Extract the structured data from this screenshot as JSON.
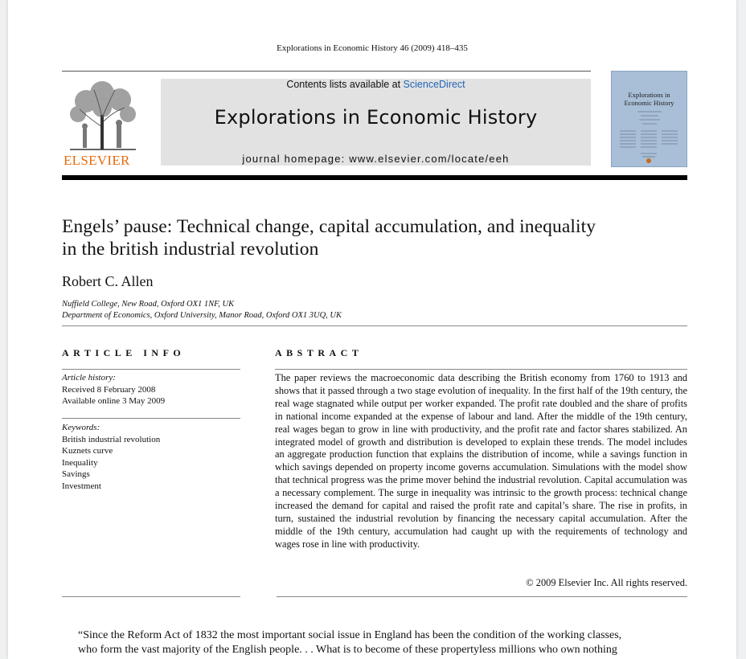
{
  "citation": "Explorations in Economic History 46 (2009) 418–435",
  "publisher": {
    "name": "ELSEVIER",
    "color": "#e66b0d"
  },
  "banner": {
    "contents_prefix": "Contents lists available at ",
    "contents_link": "ScienceDirect",
    "journal_title": "Explorations in Economic History",
    "homepage": "journal homepage: www.elsevier.com/locate/eeh"
  },
  "cover": {
    "title_line1": "Explorations in",
    "title_line2": "Economic History",
    "color": "#a9bfd8"
  },
  "article": {
    "title_line1": "Engels’ pause: Technical change, capital accumulation, and inequality",
    "title_line2": "in the british industrial revolution",
    "author": "Robert C. Allen",
    "affiliations": [
      "Nuffield College, New Road, Oxford OX1 1NF, UK",
      "Department of Economics, Oxford University, Manor Road, Oxford OX1 3UQ, UK"
    ]
  },
  "article_info": {
    "heading": "ARTICLE INFO",
    "history_label": "Article history:",
    "received": "Received 8 February 2008",
    "available": "Available online 3 May 2009",
    "keywords_label": "Keywords:",
    "keywords": [
      "British industrial revolution",
      "Kuznets curve",
      "Inequality",
      "Savings",
      "Investment"
    ]
  },
  "abstract": {
    "heading": "ABSTRACT",
    "text": "The paper reviews the macroeconomic data describing the British economy from 1760 to 1913 and shows that it passed through a two stage evolution of inequality. In the first half of the 19th century, the real wage stagnated while output per worker expanded. The profit rate doubled and the share of profits in national income expanded at the expense of labour and land. After the middle of the 19th century, real wages began to grow in line with productivity, and the profit rate and factor shares stabilized. An integrated model of growth and distribution is developed to explain these trends. The model includes an aggregate production function that explains the distribution of income, while a savings function in which savings depended on property income governs accumulation. Simulations with the model show that technical progress was the prime mover behind the industrial revolution. Capital accumulation was a necessary complement. The surge in inequality was intrinsic to the growth process: technical change increased the demand for capital and raised the profit rate and capital’s share. The rise in profits, in turn, sustained the industrial revolution by financing the necessary capital accumulation. After the middle of the 19th century, accumulation had caught up with the requirements of technology and wages rose in line with productivity.",
    "copyright": "© 2009 Elsevier Inc. All rights reserved."
  },
  "body": {
    "quote_line1": "“Since the Reform Act of 1832 the most important social issue in England has been the condition of the working classes,",
    "quote_line2": "who form the vast majority of the English people. . . What is to become of these propertyless millions who own nothing"
  }
}
